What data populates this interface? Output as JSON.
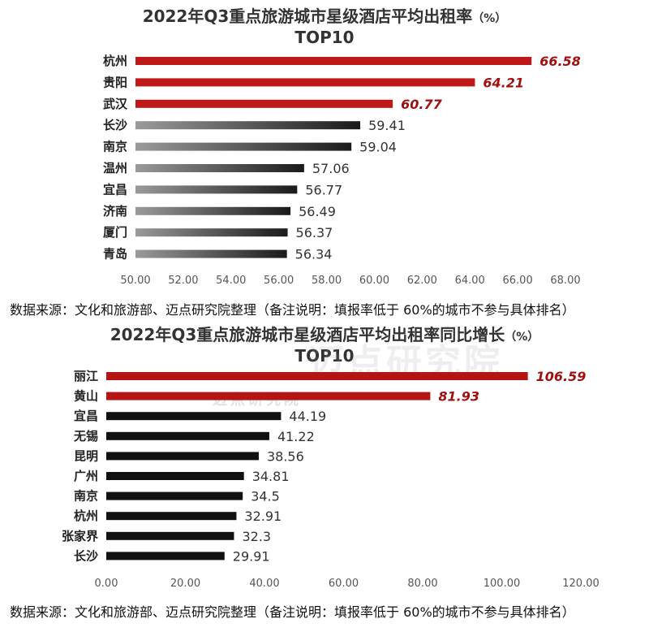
{
  "chart_data": [
    {
      "type": "bar",
      "orientation": "horizontal",
      "title": "2022年Q3重点旅游城市星级酒店平均出租率",
      "title_unit": "（%）",
      "subtitle": "TOP10",
      "categories": [
        "杭州",
        "贵阳",
        "武汉",
        "长沙",
        "南京",
        "温州",
        "宜昌",
        "济南",
        "厦门",
        "青岛"
      ],
      "values": [
        66.58,
        64.21,
        60.77,
        59.41,
        59.04,
        57.06,
        56.77,
        56.49,
        56.37,
        56.34
      ],
      "value_labels": [
        "66.58",
        "64.21",
        "60.77",
        "59.41",
        "59.04",
        "57.06",
        "56.77",
        "56.49",
        "56.37",
        "56.34"
      ],
      "highlighted_count": 3,
      "xlim": [
        50,
        68
      ],
      "xticks": [
        "50.00",
        "52.00",
        "54.00",
        "56.00",
        "58.00",
        "60.00",
        "62.00",
        "64.00",
        "66.00",
        "68.00"
      ],
      "xtick_values": [
        50,
        52,
        54,
        56,
        58,
        60,
        62,
        64,
        66,
        68
      ],
      "grid": false,
      "colors": {
        "highlight": "#c01818",
        "normal_start": "#9a9a9a",
        "normal_end": "#1a1a1a",
        "highlight_label": "#a01010"
      }
    },
    {
      "type": "bar",
      "orientation": "horizontal",
      "title": "2022年Q3重点旅游城市星级酒店平均出租率同比增长",
      "title_unit": "（%）",
      "subtitle": "TOP10",
      "categories": [
        "丽江",
        "黄山",
        "宜昌",
        "无锡",
        "昆明",
        "广州",
        "南京",
        "杭州",
        "张家界",
        "长沙"
      ],
      "values": [
        106.59,
        81.93,
        44.19,
        41.22,
        38.56,
        34.81,
        34.5,
        32.91,
        32.3,
        29.91
      ],
      "value_labels": [
        "106.59",
        "81.93",
        "44.19",
        "41.22",
        "38.56",
        "34.81",
        "34.5",
        "32.91",
        "32.3",
        "29.91"
      ],
      "highlighted_count": 2,
      "xlim": [
        0,
        120
      ],
      "xticks": [
        "0.00",
        "20.00",
        "40.00",
        "60.00",
        "80.00",
        "100.00",
        "120.00"
      ],
      "xtick_values": [
        0,
        20,
        40,
        60,
        80,
        100,
        120
      ],
      "grid": false,
      "colors": {
        "highlight": "#b51414",
        "normal": "#111111",
        "highlight_label": "#a01010"
      }
    }
  ],
  "source_note_1": "数据来源：文化和旅游部、迈点研究院整理（备注说明：填报率低于 60%的城市不参与具体排名）",
  "source_note_2": "数据来源：文化和旅游部、迈点研究院整理（备注说明：填报率低于 60%的城市不参与具体排名）",
  "watermark": {
    "small": "迈点研究院",
    "large": "迈点研究院"
  }
}
